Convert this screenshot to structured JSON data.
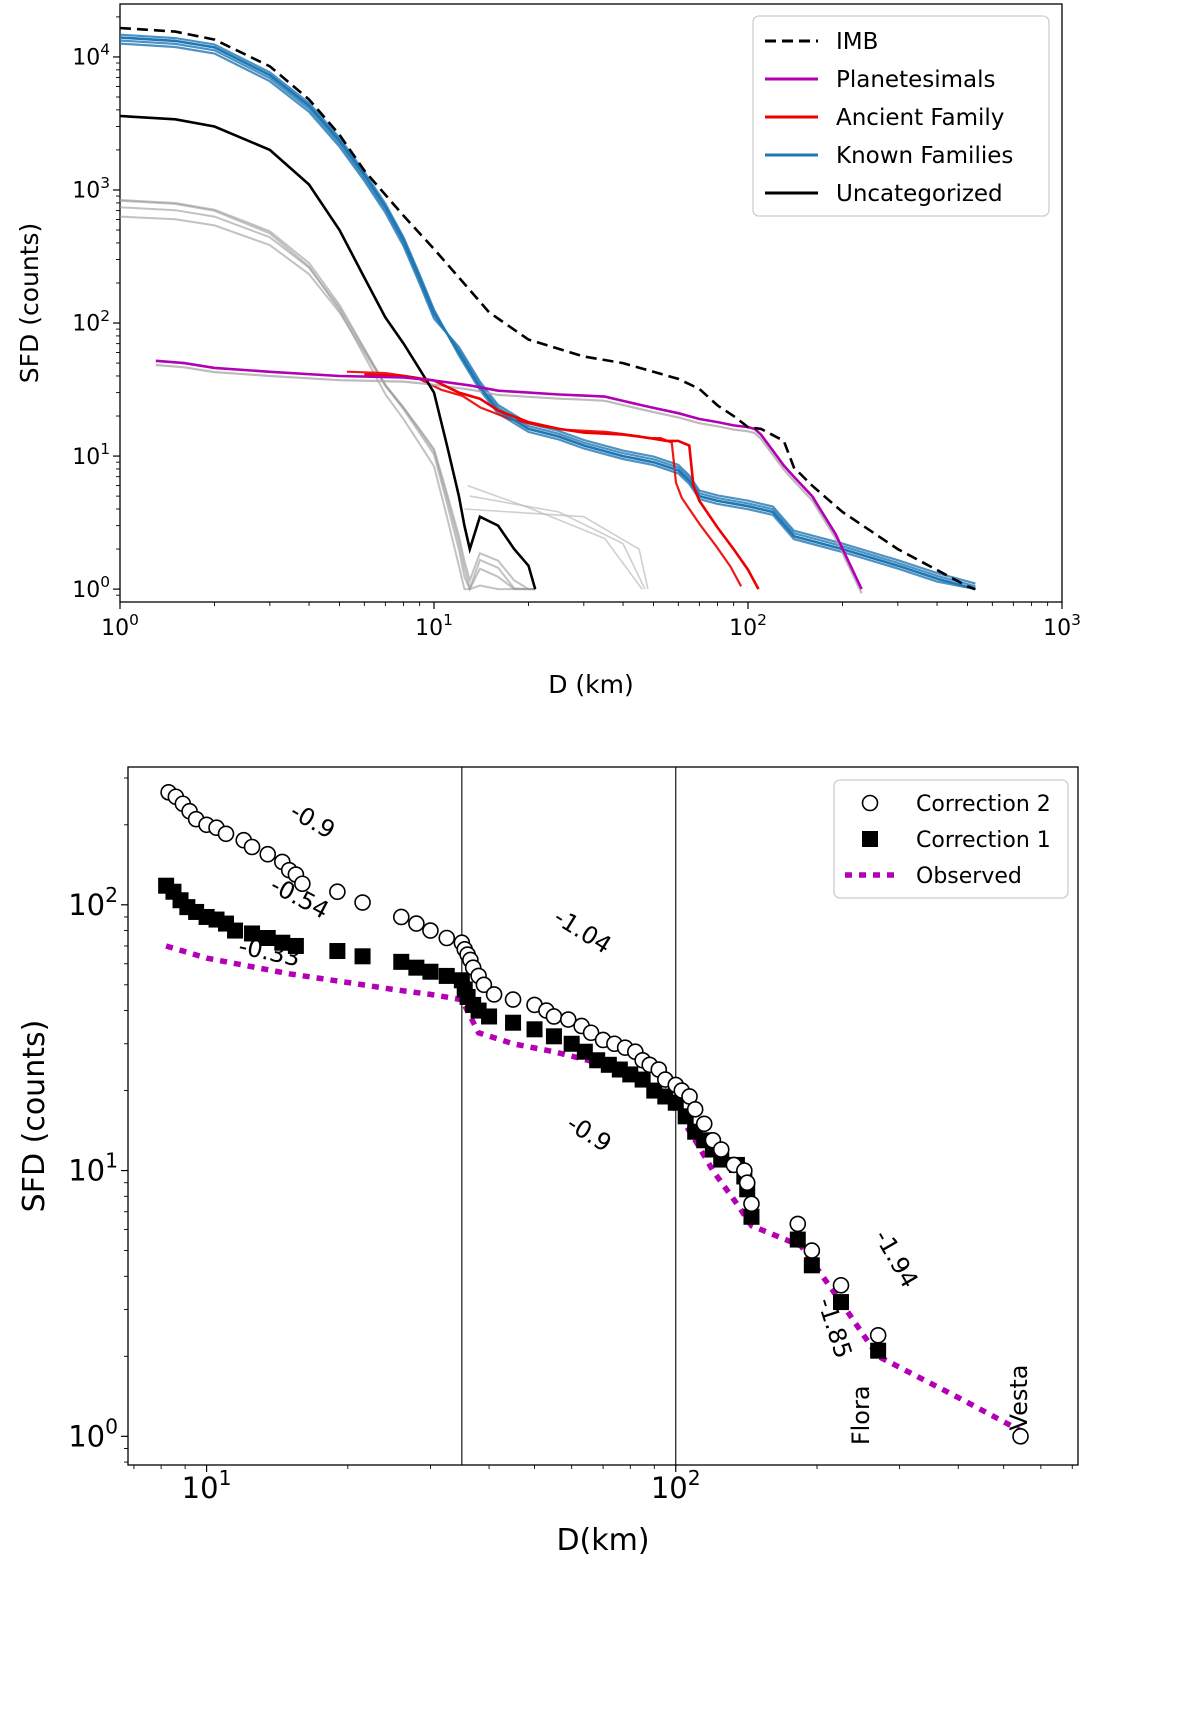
{
  "chart_data": [
    {
      "type": "line",
      "xlabel": "D (km)",
      "ylabel": "SFD (counts)",
      "xscale": "log",
      "yscale": "log",
      "xlim": [
        1,
        1000
      ],
      "ylim": [
        0.8,
        25000
      ],
      "xticks": [
        {
          "value": 1,
          "base": "10",
          "exp": "0"
        },
        {
          "value": 10,
          "base": "10",
          "exp": "1"
        },
        {
          "value": 100,
          "base": "10",
          "exp": "2"
        },
        {
          "value": 1000,
          "base": "10",
          "exp": "3"
        }
      ],
      "yticks": [
        {
          "value": 1,
          "base": "10",
          "exp": "0"
        },
        {
          "value": 10,
          "base": "10",
          "exp": "1"
        },
        {
          "value": 100,
          "base": "10",
          "exp": "2"
        },
        {
          "value": 1000,
          "base": "10",
          "exp": "3"
        },
        {
          "value": 10000,
          "base": "10",
          "exp": "4"
        }
      ],
      "legend_position": "top-right",
      "series": [
        {
          "name": "IMB",
          "color": "#000000",
          "style": "dashed",
          "x": [
            1,
            1.5,
            2,
            3,
            4,
            5,
            6,
            8,
            10,
            12,
            15,
            20,
            30,
            40,
            60,
            70,
            80,
            90,
            100,
            110,
            130,
            140,
            160,
            200,
            300,
            500,
            530
          ],
          "y": [
            16500,
            15500,
            13500,
            8500,
            4800,
            2600,
            1400,
            640,
            360,
            220,
            120,
            75,
            56,
            50,
            38,
            32,
            24,
            20,
            16.5,
            16,
            13,
            8.2,
            6,
            3.8,
            2,
            1.05,
            1
          ]
        },
        {
          "name": "Planetesimals",
          "color": "#b400b4",
          "style": "solid",
          "x": [
            1.3,
            1.6,
            2,
            3,
            5,
            8,
            10,
            13,
            16,
            20,
            25,
            30,
            35,
            40,
            50,
            60,
            70,
            80,
            90,
            100,
            105,
            110,
            120,
            130,
            140,
            160,
            190,
            230
          ],
          "y": [
            52,
            50,
            46,
            43,
            40,
            39,
            37,
            34,
            31,
            30,
            29,
            28.5,
            28,
            26,
            23,
            21,
            19,
            18,
            17,
            16.5,
            16,
            14.5,
            11,
            8.5,
            7,
            5,
            2.6,
            1
          ]
        },
        {
          "name": "Ancient Family",
          "color": "#ee0000",
          "style": "solid",
          "x": [
            6,
            8,
            10,
            12,
            14,
            16,
            20,
            25,
            30,
            40,
            45,
            50,
            55,
            60,
            65,
            67,
            70,
            80,
            90,
            100,
            108
          ],
          "y": [
            41,
            40,
            37,
            30,
            27,
            22,
            18,
            16,
            15,
            14.5,
            14,
            13.5,
            13,
            13,
            12,
            6,
            4.6,
            2.9,
            2,
            1.4,
            1
          ]
        },
        {
          "name": "Known Families",
          "color": "#1f77b4",
          "style": "solid",
          "x": [
            1,
            1.5,
            2,
            3,
            4,
            5,
            6,
            7,
            8,
            9,
            10,
            12,
            14,
            16,
            20,
            25,
            30,
            40,
            50,
            60,
            65,
            70,
            80,
            100,
            120,
            140,
            200,
            300,
            400,
            530
          ],
          "y": [
            14000,
            13200,
            11800,
            7300,
            4300,
            2350,
            1300,
            750,
            420,
            220,
            120,
            60,
            33,
            22,
            16,
            14,
            12,
            10,
            9,
            7.8,
            6.5,
            5,
            4.6,
            4.2,
            3.8,
            2.5,
            2,
            1.5,
            1.2,
            1
          ]
        },
        {
          "name": "Uncategorized",
          "color": "#000000",
          "style": "solid",
          "x": [
            1,
            1.5,
            2,
            3,
            4,
            5,
            6,
            7,
            8,
            9,
            10,
            11,
            12,
            12.5,
            13,
            14,
            16,
            18,
            20,
            21
          ],
          "y": [
            3600,
            3400,
            3000,
            2000,
            1100,
            500,
            220,
            110,
            70,
            45,
            30,
            12,
            5,
            3,
            2,
            3.5,
            3,
            2,
            1.5,
            1
          ]
        }
      ]
    },
    {
      "type": "scatter",
      "xlabel": "D(km)",
      "ylabel": "SFD (counts)",
      "xscale": "log",
      "yscale": "log",
      "xlim": [
        6.8,
        720
      ],
      "ylim": [
        0.78,
        330
      ],
      "xticks": [
        {
          "value": 10,
          "base": "10",
          "exp": "1"
        },
        {
          "value": 100,
          "base": "10",
          "exp": "2"
        }
      ],
      "yticks": [
        {
          "value": 1,
          "base": "10",
          "exp": "0"
        },
        {
          "value": 10,
          "base": "10",
          "exp": "1"
        },
        {
          "value": 100,
          "base": "10",
          "exp": "2"
        }
      ],
      "vlines": [
        35,
        100
      ],
      "legend_position": "top-right",
      "series": [
        {
          "name": "Correction 2",
          "marker": "open-circle",
          "x": [
            8.3,
            8.6,
            8.9,
            9.2,
            9.5,
            10,
            10.5,
            11,
            12,
            12.5,
            13.5,
            14.5,
            15,
            15.5,
            16,
            19,
            21.5,
            26,
            28,
            30,
            32.5,
            35,
            35.5,
            36,
            36.5,
            37,
            38,
            39,
            41,
            45,
            50,
            53,
            55,
            59,
            63,
            66,
            70,
            74,
            78,
            82,
            85,
            88,
            92,
            95,
            100,
            103,
            107,
            110,
            115,
            120,
            125,
            133,
            140,
            142,
            145,
            182,
            195,
            225,
            270,
            543
          ],
          "y": [
            265,
            255,
            240,
            225,
            210,
            200,
            195,
            185,
            175,
            165,
            155,
            145,
            135,
            130,
            120,
            112,
            102,
            90,
            85,
            80,
            75,
            72,
            68,
            65,
            62,
            58,
            54,
            50,
            46,
            44,
            42,
            40,
            38,
            37,
            35,
            33,
            31,
            30,
            29,
            28,
            26,
            25,
            24,
            22,
            21,
            20,
            19,
            17,
            15,
            13,
            12,
            10.5,
            10,
            9,
            7.5,
            6.3,
            5,
            3.7,
            2.4,
            1
          ]
        },
        {
          "name": "Correction 1",
          "marker": "filled-square",
          "x": [
            8.2,
            8.5,
            8.8,
            9.1,
            9.5,
            10,
            10.5,
            11,
            11.5,
            12.5,
            13.5,
            14.5,
            15.5,
            19,
            21.5,
            26,
            28,
            30,
            32.5,
            35,
            35.5,
            36,
            37,
            38,
            40,
            45,
            50,
            55,
            60,
            64,
            68,
            72,
            76,
            80,
            85,
            90,
            95,
            100,
            105,
            110,
            115,
            120,
            125,
            135,
            140,
            142,
            145,
            182,
            195,
            225,
            270
          ],
          "y": [
            118,
            112,
            104,
            98,
            94,
            90,
            88,
            85,
            80,
            78,
            75,
            72,
            70,
            67,
            64,
            61,
            58,
            56,
            54,
            52,
            48,
            45,
            42,
            40,
            38,
            36,
            34,
            32,
            30,
            28,
            26,
            25,
            24,
            23,
            22,
            20,
            19,
            18,
            16,
            14,
            13,
            12,
            11,
            10.5,
            9.5,
            8.5,
            6.7,
            5.5,
            4.4,
            3.2,
            2.1
          ]
        },
        {
          "name": "Observed",
          "style": "dotted",
          "color": "#b400b4",
          "x": [
            8.2,
            10,
            15,
            20,
            25,
            30,
            35,
            38,
            45,
            55,
            65,
            75,
            85,
            95,
            100,
            110,
            120,
            135,
            145,
            185,
            225,
            270,
            400,
            543
          ],
          "y": [
            70,
            63,
            55,
            51,
            48,
            46,
            44,
            33,
            30,
            28,
            26,
            24,
            21,
            18.5,
            17,
            13,
            10,
            7.5,
            6.2,
            5.2,
            3.2,
            2,
            1.4,
            1.05
          ]
        }
      ],
      "annotations": [
        {
          "text": "-0.9",
          "x": 16.5,
          "y": 195,
          "rotation": 30
        },
        {
          "text": "-0.54",
          "x": 15.5,
          "y": 100,
          "rotation": 28
        },
        {
          "text": "-0.33",
          "x": 13.5,
          "y": 62,
          "rotation": 12
        },
        {
          "text": "-1.04",
          "x": 62,
          "y": 75,
          "rotation": 32
        },
        {
          "text": "-0.9",
          "x": 64,
          "y": 13,
          "rotation": 32
        },
        {
          "text": "-1.94",
          "x": 285,
          "y": 4.5,
          "rotation": 60
        },
        {
          "text": "-1.85",
          "x": 210,
          "y": 2.5,
          "rotation": 72
        },
        {
          "text": "Flora",
          "x": 258,
          "y": 1.2,
          "rotation": -90
        },
        {
          "text": "Vesta",
          "x": 560,
          "y": 1.4,
          "rotation": -90
        }
      ]
    }
  ]
}
